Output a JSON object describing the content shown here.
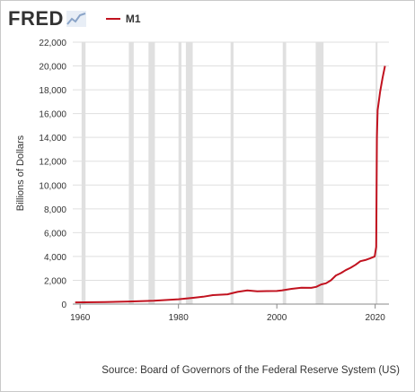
{
  "header": {
    "logo_text": "FRED",
    "logo_icon": "chart-line-icon"
  },
  "colors": {
    "series_line": "#c1121f",
    "recession_band": "#e0e0e0",
    "grid": "#dfdfdf",
    "text": "#333333"
  },
  "source_text": "Source: Board of Governors of the Federal Reserve System (US)",
  "chart_data": {
    "type": "line",
    "title": "",
    "xlabel": "",
    "ylabel": "Billions of Dollars",
    "legend": "top-left",
    "grid": true,
    "xlim": [
      1958.5,
      2022.8
    ],
    "ylim": [
      0,
      22000
    ],
    "x_ticks": [
      1960,
      1980,
      2000,
      2020
    ],
    "x_tick_labels": [
      "1960",
      "1980",
      "2000",
      "2020"
    ],
    "y_ticks": [
      0,
      2000,
      4000,
      6000,
      8000,
      10000,
      12000,
      14000,
      16000,
      18000,
      20000,
      22000
    ],
    "y_tick_labels": [
      "0",
      "2,000",
      "4,000",
      "6,000",
      "8,000",
      "10,000",
      "12,000",
      "14,000",
      "16,000",
      "18,000",
      "20,000",
      "22,000"
    ],
    "recessions": [
      [
        1960.3,
        1961.1
      ],
      [
        1969.9,
        1970.9
      ],
      [
        1973.9,
        1975.2
      ],
      [
        1980.0,
        1980.6
      ],
      [
        1981.5,
        1982.9
      ],
      [
        1990.6,
        1991.2
      ],
      [
        2001.2,
        2001.9
      ],
      [
        2007.9,
        2009.5
      ],
      [
        2020.1,
        2020.4
      ]
    ],
    "series": [
      {
        "name": "M1",
        "x": [
          1959,
          1965,
          1970,
          1975,
          1980,
          1983,
          1985,
          1987,
          1990,
          1992,
          1994,
          1996,
          1998,
          2000,
          2001,
          2003,
          2005,
          2007,
          2008,
          2009,
          2010,
          2011,
          2012,
          2013,
          2014,
          2015,
          2016,
          2017,
          2018,
          2019,
          2019.9,
          2020.2,
          2020.35,
          2020.5,
          2020.7,
          2021.0,
          2021.5,
          2022.0
        ],
        "values": [
          140,
          168,
          215,
          287,
          408,
          526,
          620,
          750,
          825,
          1025,
          1150,
          1080,
          1095,
          1100,
          1150,
          1280,
          1375,
          1365,
          1450,
          1650,
          1750,
          2000,
          2400,
          2600,
          2850,
          3050,
          3300,
          3600,
          3700,
          3850,
          4000,
          4800,
          14000,
          16300,
          16900,
          17800,
          19000,
          20000
        ]
      }
    ]
  }
}
